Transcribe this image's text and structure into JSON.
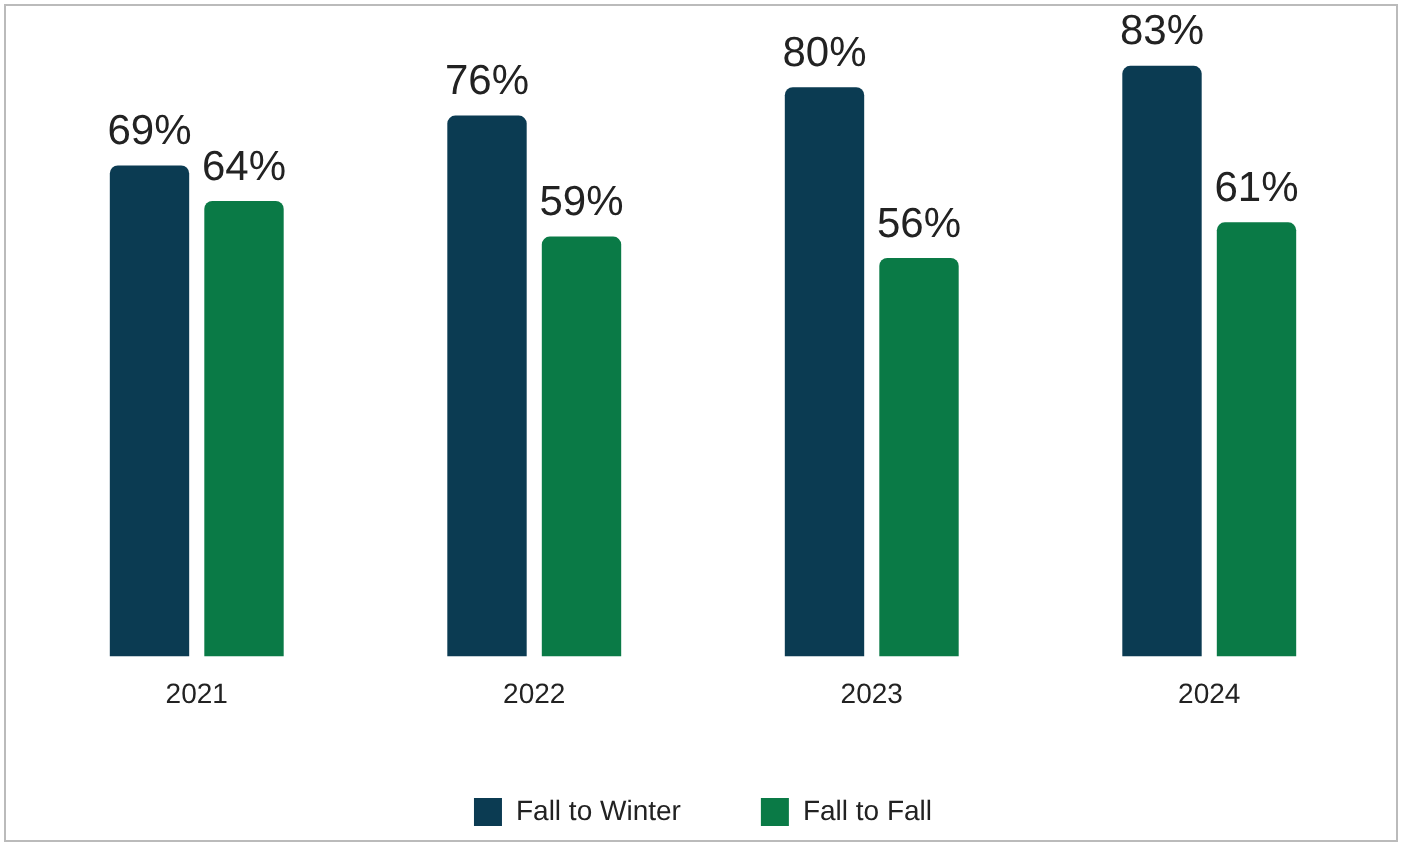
{
  "chart_data": {
    "type": "bar",
    "categories": [
      "2021",
      "2022",
      "2023",
      "2024"
    ],
    "series": [
      {
        "name": "Fall to Winter",
        "color": "#0b3b52",
        "values": [
          69,
          76,
          80,
          83
        ],
        "value_labels": [
          "69%",
          "76%",
          "80%",
          "83%"
        ]
      },
      {
        "name": "Fall to Fall",
        "color": "#0a7a46",
        "values": [
          64,
          59,
          56,
          61
        ],
        "value_labels": [
          "64%",
          "59%",
          "56%",
          "61%"
        ]
      }
    ],
    "legend": "bottom",
    "grid": false
  }
}
